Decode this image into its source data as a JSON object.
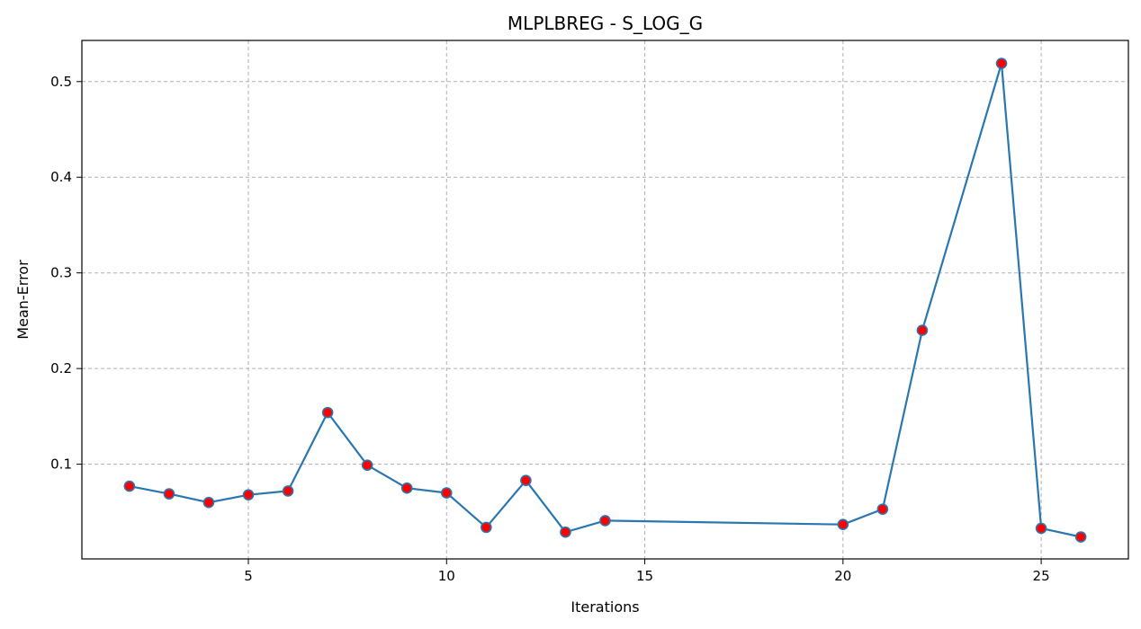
{
  "chart_data": {
    "type": "line",
    "title": "MLPLBREG - S_LOG_G",
    "xlabel": "Iterations",
    "ylabel": "Mean-Error",
    "xlim": [
      0.8,
      27.2
    ],
    "ylim": [
      0.001,
      0.543
    ],
    "xticks": [
      5,
      10,
      15,
      20,
      25
    ],
    "yticks": [
      0.1,
      0.2,
      0.3,
      0.4,
      0.5
    ],
    "grid": true,
    "series": [
      {
        "x": [
          2,
          3,
          4,
          5,
          6,
          7,
          8,
          9,
          10,
          11,
          12,
          13,
          14,
          20,
          21,
          22,
          24,
          25,
          26
        ],
        "y": [
          0.077,
          0.069,
          0.06,
          0.068,
          0.072,
          0.154,
          0.099,
          0.075,
          0.07,
          0.034,
          0.083,
          0.029,
          0.041,
          0.037,
          0.053,
          0.24,
          0.519,
          0.033,
          0.024
        ],
        "line_color": "#2a77b0",
        "marker_color": "#ff0000",
        "marker_edge_color": "#2a77b0"
      }
    ]
  }
}
